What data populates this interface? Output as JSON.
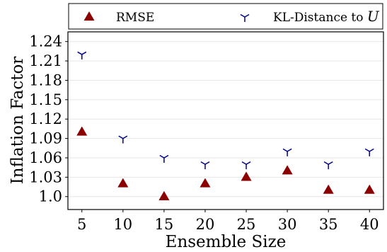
{
  "chart_data": {
    "type": "scatter",
    "xlabel": "Ensemble Size",
    "ylabel": "Inflation Factor",
    "x": [
      5,
      10,
      15,
      20,
      25,
      30,
      35,
      40
    ],
    "xticks": [
      "5",
      "10",
      "15",
      "20",
      "25",
      "30",
      "35",
      "40"
    ],
    "yticks": [
      "1.0",
      "1.03",
      "1.06",
      "1.09",
      "1.12",
      "1.15",
      "1.18",
      "1.21",
      "1.24"
    ],
    "ylim": [
      0.98,
      1.255
    ],
    "xlim": [
      3.3,
      41.7
    ],
    "grid": "horizontal",
    "legend_position": "top",
    "series": [
      {
        "name": "RMSE",
        "marker": "triangle-up",
        "color": "#8b0000",
        "values": [
          1.1,
          1.02,
          1.0,
          1.02,
          1.03,
          1.04,
          1.01,
          1.01
        ]
      },
      {
        "name": "KL-Distance to ",
        "name_math": "U",
        "marker": "tri-down",
        "color": "#00008b",
        "values": [
          1.22,
          1.09,
          1.06,
          1.05,
          1.05,
          1.07,
          1.05,
          1.07
        ]
      }
    ]
  }
}
